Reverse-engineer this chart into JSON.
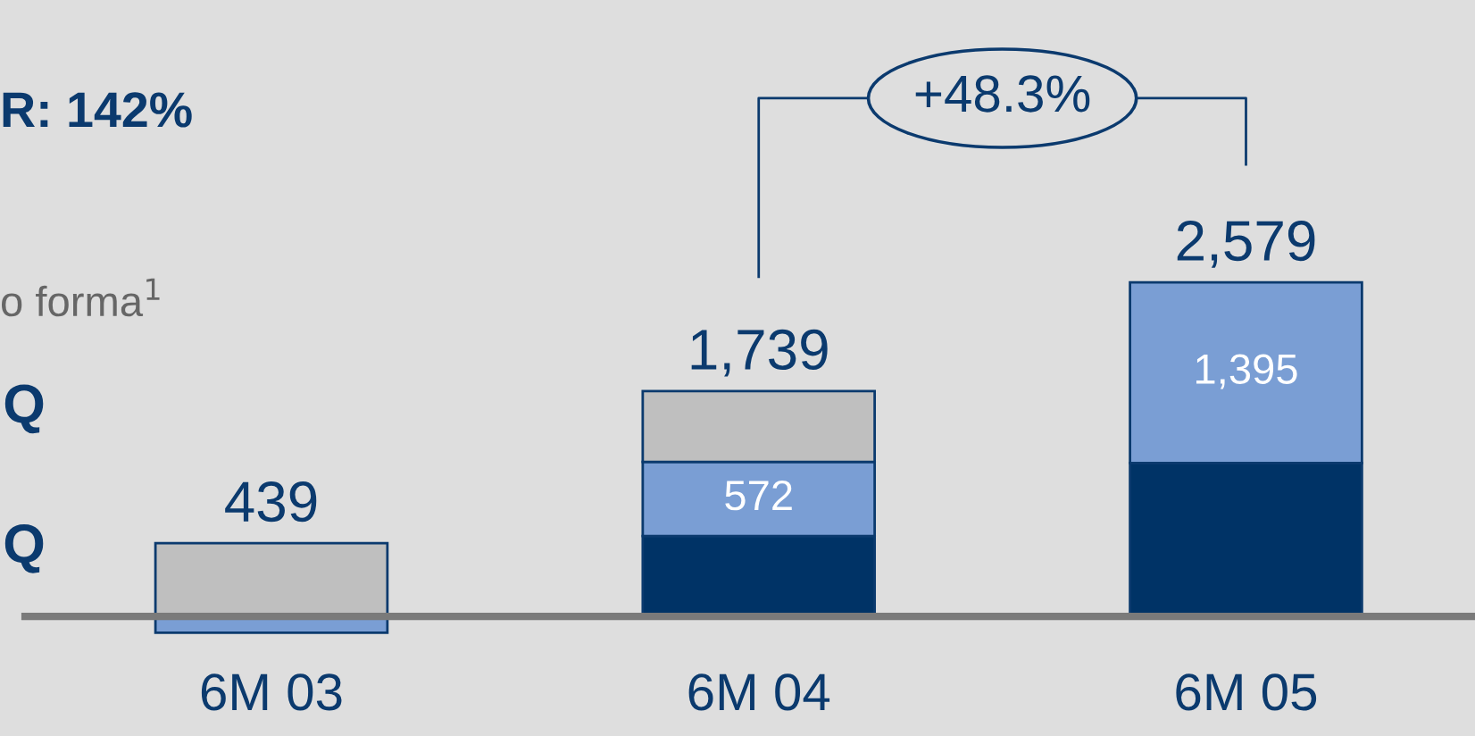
{
  "chart_data": {
    "type": "bar",
    "stacked": true,
    "categories": [
      "6M 03",
      "6M 04",
      "6M 05"
    ],
    "series": [
      {
        "color": "#003366",
        "values": [
          0,
          620,
          1184
        ]
      },
      {
        "color": "#7a9ed4",
        "values": [
          -126,
          572,
          1395
        ],
        "value_labels": [
          null,
          "572",
          "1,395"
        ]
      },
      {
        "color": "#bfbfbf",
        "values": [
          565,
          547,
          null
        ]
      }
    ],
    "totals": [
      "439",
      "1,739",
      "2,579"
    ],
    "annotations": [
      "R: 142%",
      "o forma$^{1}$",
      "Q",
      "Q",
      "+48.3%"
    ]
  }
}
